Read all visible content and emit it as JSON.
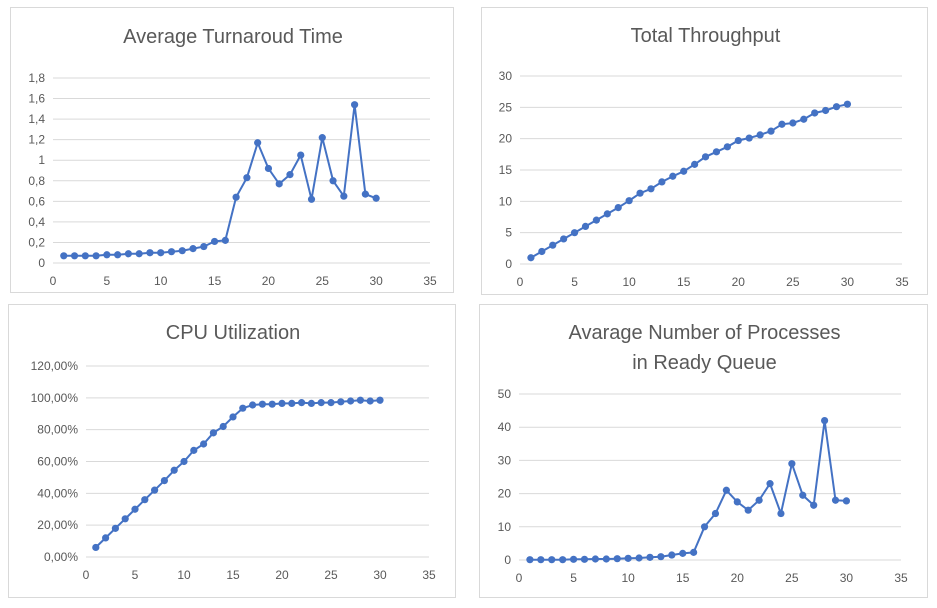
{
  "chart_data": [
    {
      "id": "turnaround",
      "type": "line",
      "title": [
        "Average Turnaroud Time"
      ],
      "xlim": [
        0,
        35
      ],
      "xticks": [
        0,
        5,
        10,
        15,
        20,
        25,
        30,
        35
      ],
      "ylim": [
        0,
        1.8
      ],
      "yticks": [
        0,
        0.2,
        0.4,
        0.6,
        0.8,
        1,
        1.2,
        1.4,
        1.6,
        1.8
      ],
      "ytick_labels": [
        "0",
        "0,2",
        "0,4",
        "0,6",
        "0,8",
        "1",
        "1,2",
        "1,4",
        "1,6",
        "1,8"
      ],
      "grid": "horizontal",
      "color": "#4472c4",
      "x": [
        1,
        2,
        3,
        4,
        5,
        6,
        7,
        8,
        9,
        10,
        11,
        12,
        13,
        14,
        15,
        16,
        17,
        18,
        19,
        20,
        21,
        22,
        23,
        24,
        25,
        26,
        27,
        28,
        29,
        30
      ],
      "series": [
        {
          "values": [
            0.07,
            0.07,
            0.07,
            0.07,
            0.08,
            0.08,
            0.09,
            0.09,
            0.1,
            0.1,
            0.11,
            0.12,
            0.14,
            0.16,
            0.21,
            0.22,
            0.64,
            0.83,
            1.17,
            0.92,
            0.77,
            0.86,
            1.05,
            0.62,
            1.22,
            0.8,
            0.65,
            1.54,
            0.67,
            0.63
          ]
        }
      ]
    },
    {
      "id": "throughput",
      "type": "line",
      "title": [
        "Total Throughput"
      ],
      "xlim": [
        0,
        35
      ],
      "xticks": [
        0,
        5,
        10,
        15,
        20,
        25,
        30,
        35
      ],
      "ylim": [
        0,
        30
      ],
      "yticks": [
        0,
        5,
        10,
        15,
        20,
        25,
        30
      ],
      "ytick_labels": [
        "0",
        "5",
        "10",
        "15",
        "20",
        "25",
        "30"
      ],
      "grid": "horizontal",
      "color": "#4472c4",
      "x": [
        1,
        2,
        3,
        4,
        5,
        6,
        7,
        8,
        9,
        10,
        11,
        12,
        13,
        14,
        15,
        16,
        17,
        18,
        19,
        20,
        21,
        22,
        23,
        24,
        25,
        26,
        27,
        28,
        29,
        30
      ],
      "series": [
        {
          "values": [
            1,
            2,
            3,
            4,
            5,
            6,
            7,
            8,
            9,
            10.1,
            11.3,
            12,
            13.1,
            14,
            14.8,
            15.9,
            17.1,
            17.9,
            18.7,
            19.7,
            20.1,
            20.6,
            21.2,
            22.3,
            22.5,
            23.1,
            24.1,
            24.5,
            25.1,
            25.5
          ]
        }
      ]
    },
    {
      "id": "cpu",
      "type": "line",
      "title": [
        "CPU Utilization"
      ],
      "xlim": [
        0,
        35
      ],
      "xticks": [
        0,
        5,
        10,
        15,
        20,
        25,
        30,
        35
      ],
      "ylim": [
        0,
        120
      ],
      "yticks": [
        0,
        20,
        40,
        60,
        80,
        100,
        120
      ],
      "ytick_labels": [
        "0,00%",
        "20,00%",
        "40,00%",
        "60,00%",
        "80,00%",
        "100,00%",
        "120,00%"
      ],
      "grid": "horizontal",
      "color": "#4472c4",
      "x": [
        1,
        2,
        3,
        4,
        5,
        6,
        7,
        8,
        9,
        10,
        11,
        12,
        13,
        14,
        15,
        16,
        17,
        18,
        19,
        20,
        21,
        22,
        23,
        24,
        25,
        26,
        27,
        28,
        29,
        30
      ],
      "series": [
        {
          "values": [
            6,
            12,
            18,
            24,
            30,
            36,
            42,
            48,
            54.5,
            60,
            67,
            71,
            78,
            82,
            88,
            93.5,
            95.5,
            96,
            96,
            96.5,
            96.5,
            97,
            96.5,
            97,
            97,
            97.5,
            98,
            98.5,
            98,
            98.5
          ]
        }
      ]
    },
    {
      "id": "ready_queue",
      "type": "line",
      "title": [
        "Avarage Number of Processes",
        "in Ready Queue"
      ],
      "xlim": [
        0,
        35
      ],
      "xticks": [
        0,
        5,
        10,
        15,
        20,
        25,
        30,
        35
      ],
      "ylim": [
        0,
        50
      ],
      "yticks": [
        0,
        10,
        20,
        30,
        40,
        50
      ],
      "ytick_labels": [
        "0",
        "10",
        "20",
        "30",
        "40",
        "50"
      ],
      "grid": "horizontal",
      "color": "#4472c4",
      "x": [
        1,
        2,
        3,
        4,
        5,
        6,
        7,
        8,
        9,
        10,
        11,
        12,
        13,
        14,
        15,
        16,
        17,
        18,
        19,
        20,
        21,
        22,
        23,
        24,
        25,
        26,
        27,
        28,
        29,
        30
      ],
      "series": [
        {
          "values": [
            0.1,
            0.1,
            0.1,
            0.1,
            0.2,
            0.2,
            0.3,
            0.3,
            0.4,
            0.5,
            0.6,
            0.8,
            1,
            1.5,
            2,
            2.3,
            10,
            14,
            21,
            17.5,
            15,
            18,
            23,
            14,
            29,
            19.5,
            16.5,
            42,
            18,
            17.8
          ]
        }
      ]
    }
  ]
}
